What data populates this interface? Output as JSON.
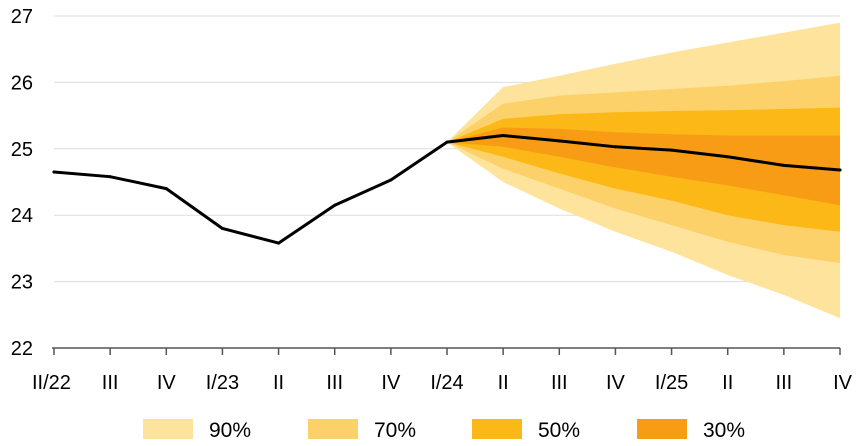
{
  "chart_data": {
    "type": "area",
    "title": "",
    "xlabel": "",
    "ylabel": "",
    "ylim": [
      22,
      27
    ],
    "y_ticks": [
      "22",
      "23",
      "24",
      "25",
      "26",
      "27"
    ],
    "grid": "horizontal",
    "legend_position": "bottom",
    "categories": [
      "II/22",
      "III",
      "IV",
      "I/23",
      "II",
      "III",
      "IV",
      "I/24",
      "II",
      "III",
      "IV",
      "I/25",
      "II",
      "III",
      "IV"
    ],
    "series": [
      {
        "values": [
          24.65,
          24.58,
          24.4,
          23.8,
          23.58,
          24.15,
          24.53,
          25.1,
          25.2,
          25.12,
          25.03,
          24.98,
          24.88,
          24.75,
          24.68
        ]
      }
    ],
    "fan_start_index": 7,
    "bands": [
      {
        "name": "90%",
        "color": "#fde39c",
        "lower": [
          25.1,
          24.5,
          24.1,
          23.75,
          23.45,
          23.1,
          22.8,
          22.45
        ],
        "upper": [
          25.1,
          25.93,
          26.1,
          26.28,
          26.45,
          26.6,
          26.75,
          26.9
        ]
      },
      {
        "name": "70%",
        "color": "#fdd169",
        "lower": [
          25.1,
          24.7,
          24.4,
          24.1,
          23.85,
          23.6,
          23.4,
          23.28
        ],
        "upper": [
          25.1,
          25.68,
          25.8,
          25.85,
          25.9,
          25.95,
          26.02,
          26.1
        ]
      },
      {
        "name": "50%",
        "color": "#fbb817",
        "lower": [
          25.1,
          24.88,
          24.63,
          24.4,
          24.22,
          24.0,
          23.85,
          23.75
        ],
        "upper": [
          25.1,
          25.45,
          25.52,
          25.55,
          25.57,
          25.58,
          25.6,
          25.62
        ]
      },
      {
        "name": "30%",
        "color": "#f79c14",
        "lower": [
          25.1,
          25.03,
          24.88,
          24.72,
          24.58,
          24.45,
          24.3,
          24.15
        ],
        "upper": [
          25.1,
          25.32,
          25.3,
          25.25,
          25.22,
          25.2,
          25.2,
          25.2
        ]
      }
    ],
    "legend": [
      "90%",
      "70%",
      "50%",
      "30%"
    ],
    "colors": {
      "line": "#000000",
      "grid": "#dddddd",
      "axis": "#555555"
    }
  }
}
